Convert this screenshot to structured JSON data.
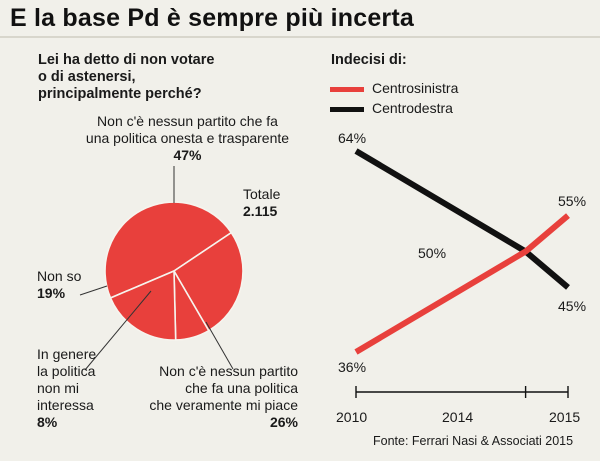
{
  "title": "E la base Pd è sempre più incerta",
  "pie": {
    "question": [
      "Lei ha detto di non votare",
      "o di astenersi,",
      "principalmente perché?"
    ],
    "total_label": "Totale",
    "total_value": "2.115",
    "slices": [
      {
        "lines": [
          "Non c'è nessun partito che fa",
          "una politica onesta e trasparente"
        ],
        "pct": "47%",
        "value": 47
      },
      {
        "lines": [
          "Non c'è nessun partito",
          "che fa una politica",
          "che veramente mi piace"
        ],
        "pct": "26%",
        "value": 26
      },
      {
        "lines": [
          "In genere",
          "la politica",
          "non mi",
          "interessa"
        ],
        "pct": "8%",
        "value": 8
      },
      {
        "lines": [
          "Non so"
        ],
        "pct": "19%",
        "value": 19
      }
    ]
  },
  "chart_data": [
    {
      "type": "pie",
      "title": "Lei ha detto di non votare o di astenersi, principalmente perché?",
      "total": "2.115",
      "labels": [
        "Non c'è nessun partito che fa una politica onesta e trasparente",
        "Non c'è nessun partito che fa una politica che veramente mi piace",
        "In genere la politica non mi interessa",
        "Non so"
      ],
      "values": [
        47,
        26,
        8,
        19
      ],
      "color": "#e8403c"
    },
    {
      "type": "line",
      "title": "Indecisi di:",
      "x": [
        2010,
        2014,
        2015
      ],
      "series": [
        {
          "name": "Centrosinistra",
          "values": [
            36,
            50,
            55
          ],
          "labels": [
            "36%",
            "50%",
            "55%"
          ],
          "color": "#e8403c"
        },
        {
          "name": "Centrodestra",
          "values": [
            64,
            50,
            45
          ],
          "labels": [
            "64%",
            "50%",
            "45%"
          ],
          "color": "#111111"
        }
      ],
      "ylim": [
        30,
        70
      ],
      "legend": "top-left"
    }
  ],
  "source": "Fonte: Ferrari Nasi & Associati 2015"
}
